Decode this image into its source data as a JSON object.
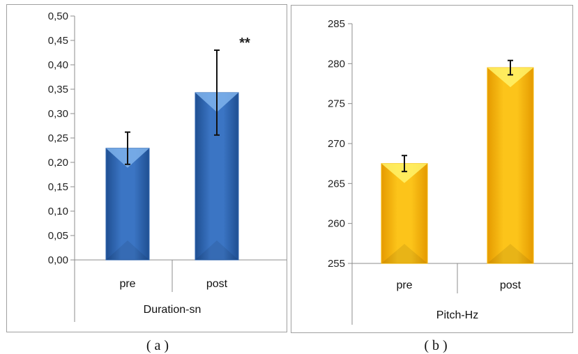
{
  "chart_data": [
    {
      "type": "bar",
      "group_label": "Duration-sn",
      "categories": [
        "pre",
        "post"
      ],
      "values": [
        0.229,
        0.343
      ],
      "errors": [
        0.033,
        0.087
      ],
      "ylim": [
        0,
        0.5
      ],
      "yticks": [
        0,
        0.05,
        0.1,
        0.15,
        0.2,
        0.25,
        0.3,
        0.35,
        0.4,
        0.45,
        0.5
      ],
      "ytick_labels": [
        "0,00",
        "0,05",
        "0,10",
        "0,15",
        "0,20",
        "0,25",
        "0,30",
        "0,35",
        "0,40",
        "0,45",
        "0,50"
      ],
      "annotation": "**",
      "caption": "( a )",
      "color": "#2f66b0",
      "highlight": "#7fb3ec",
      "grid": false
    },
    {
      "type": "bar",
      "group_label": "Pitch-Hz",
      "categories": [
        "pre",
        "post"
      ],
      "values": [
        267.5,
        279.5
      ],
      "errors": [
        1.0,
        0.9
      ],
      "ylim": [
        255,
        285
      ],
      "yticks": [
        255,
        260,
        265,
        270,
        275,
        280,
        285
      ],
      "ytick_labels": [
        "255",
        "260",
        "265",
        "270",
        "275",
        "280",
        "285"
      ],
      "annotation": "",
      "caption": "( b )",
      "color": "#f4b400",
      "highlight": "#fff36a",
      "grid": false
    }
  ]
}
